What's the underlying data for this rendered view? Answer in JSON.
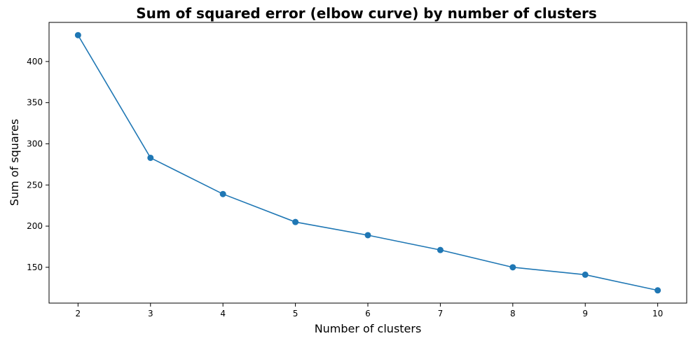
{
  "chart_data": {
    "type": "line",
    "title": "Sum of squared error (elbow curve) by number of clusters",
    "xlabel": "Number of clusters",
    "ylabel": "Sum of squares",
    "x": [
      2,
      3,
      4,
      5,
      6,
      7,
      8,
      9,
      10
    ],
    "series": [
      {
        "values": [
          432,
          283,
          239,
          205,
          189,
          171,
          150,
          141,
          122
        ],
        "color": "#1f77b4",
        "marker": "circle"
      }
    ],
    "xlim": [
      1.6,
      10.4
    ],
    "ylim": [
      106.5,
      447.5
    ],
    "xticks": [
      "2",
      "3",
      "4",
      "5",
      "6",
      "7",
      "8",
      "9",
      "10"
    ],
    "yticks": [
      "150",
      "200",
      "250",
      "300",
      "350",
      "400"
    ],
    "grid": false,
    "legend": false
  }
}
